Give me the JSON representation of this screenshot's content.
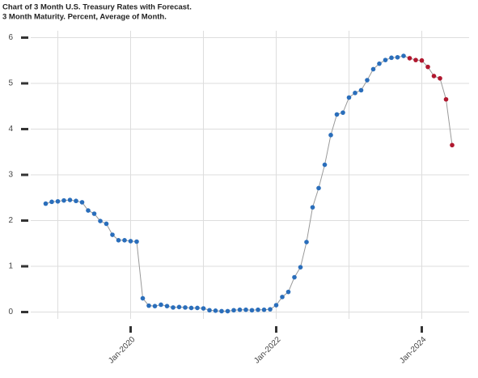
{
  "chart_data": {
    "type": "line",
    "title": "Chart of 3 Month U.S. Treasury Rates with Forecast.",
    "subtitle": "3 Month Maturity. Percent, Average of Month.",
    "categories": [
      null,
      null,
      null,
      null,
      null,
      null,
      null,
      null,
      null,
      null,
      null,
      null,
      null,
      null,
      "Jan-2020",
      null,
      null,
      null,
      null,
      null,
      null,
      null,
      null,
      null,
      null,
      null,
      null,
      null,
      null,
      null,
      null,
      null,
      null,
      null,
      null,
      null,
      null,
      null,
      "Jan-2022",
      null,
      null,
      null,
      null,
      null,
      null,
      null,
      null,
      null,
      null,
      null,
      null,
      null,
      null,
      null,
      null,
      null,
      null,
      null,
      null,
      null,
      null,
      null,
      "Jan-2024",
      null,
      null,
      null,
      null,
      null
    ],
    "series": [
      {
        "color": "#2a6ebb",
        "values": [
          2.37,
          2.41,
          2.42,
          2.44,
          2.45,
          2.43,
          2.4,
          2.22,
          2.15,
          1.99,
          1.93,
          1.69,
          1.57,
          1.57,
          1.55,
          1.54,
          0.3,
          0.14,
          0.13,
          0.16,
          0.13,
          0.1,
          0.11,
          0.1,
          0.09,
          0.09,
          0.08,
          0.04,
          0.03,
          0.02,
          0.02,
          0.04,
          0.05,
          0.05,
          0.04,
          0.05,
          0.05,
          0.06,
          0.15,
          0.33,
          0.44,
          0.76,
          0.98,
          1.53,
          2.29,
          2.71,
          3.22,
          3.87,
          4.32,
          4.36,
          4.69,
          4.79,
          4.85,
          5.07,
          5.31,
          5.43,
          5.51,
          5.56,
          5.57,
          5.6,
          null,
          null,
          null,
          null,
          null,
          null,
          null,
          null
        ]
      },
      {
        "color": "#b0182f",
        "values": [
          null,
          null,
          null,
          null,
          null,
          null,
          null,
          null,
          null,
          null,
          null,
          null,
          null,
          null,
          null,
          null,
          null,
          null,
          null,
          null,
          null,
          null,
          null,
          null,
          null,
          null,
          null,
          null,
          null,
          null,
          null,
          null,
          null,
          null,
          null,
          null,
          null,
          null,
          null,
          null,
          null,
          null,
          null,
          null,
          null,
          null,
          null,
          null,
          null,
          null,
          null,
          null,
          null,
          null,
          null,
          null,
          null,
          null,
          null,
          null,
          5.55,
          5.51,
          5.5,
          5.36,
          5.16,
          5.11,
          4.65,
          3.65
        ]
      }
    ],
    "line_color": "#999999",
    "ylim": [
      -0.15,
      6.15
    ],
    "yticks": [
      0,
      1,
      2,
      3,
      4,
      5,
      6
    ],
    "grid": true
  }
}
